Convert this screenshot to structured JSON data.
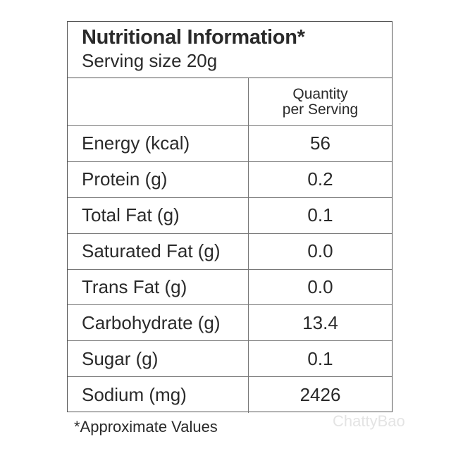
{
  "header": {
    "title": "Nutritional Information*",
    "subtitle": "Serving size 20g"
  },
  "table": {
    "column_header": [
      "Quantity",
      "per Serving"
    ],
    "rows": [
      [
        "Energy (kcal)",
        "56"
      ],
      [
        "Protein (g)",
        "0.2"
      ],
      [
        "Total Fat (g)",
        "0.1"
      ],
      [
        "Saturated Fat (g)",
        "0.0"
      ],
      [
        "Trans Fat (g)",
        "0.0"
      ],
      [
        "Carbohydrate (g)",
        "13.4"
      ],
      [
        "Sugar (g)",
        "0.1"
      ],
      [
        "Sodium (mg)",
        "2426"
      ]
    ]
  },
  "footnote": "*Approximate Values",
  "watermark": "ChattyBao"
}
